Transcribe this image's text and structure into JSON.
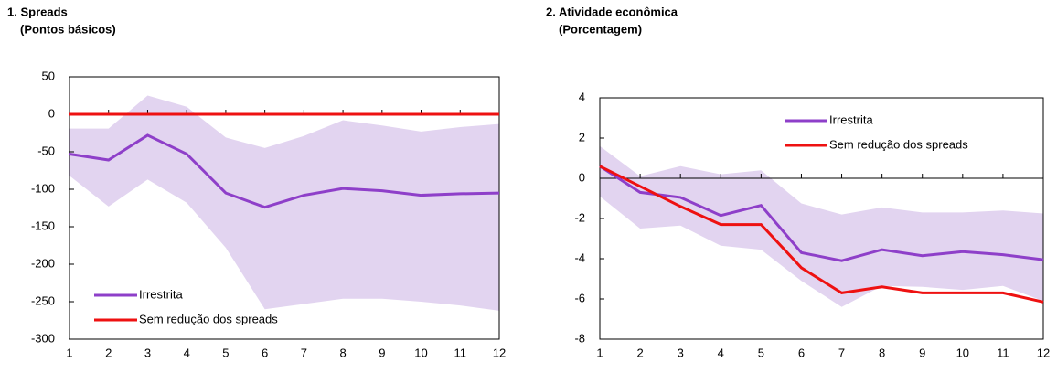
{
  "chart_data": [
    {
      "type": "line",
      "title": "1.  Spreads",
      "subtitle": "(Pontos básicos)",
      "x": [
        1,
        2,
        3,
        4,
        5,
        6,
        7,
        8,
        9,
        10,
        11,
        12
      ],
      "xlim": [
        1,
        12
      ],
      "xticks": [
        1,
        2,
        3,
        4,
        5,
        6,
        7,
        8,
        9,
        10,
        11,
        12
      ],
      "ylim": [
        -300,
        50
      ],
      "yticks": [
        -300,
        -250,
        -200,
        -150,
        -100,
        -50,
        0,
        50
      ],
      "legend": "lower left",
      "band": {
        "color": "#e2d4f0",
        "upper": [
          -19,
          -19,
          25,
          10,
          -31,
          -45,
          -29,
          -8,
          -15,
          -23,
          -17,
          -13
        ],
        "lower": [
          -82,
          -123,
          -87,
          -118,
          -178,
          -260,
          -253,
          -246,
          -246,
          -250,
          -255,
          -262
        ]
      },
      "series": [
        {
          "name": "Irrestrita",
          "color": "#8e3fc9",
          "values": [
            -53,
            -61,
            -28,
            -53,
            -105,
            -124,
            -108,
            -99,
            -102,
            -108,
            -106,
            -105
          ]
        },
        {
          "name": "Sem redução dos spreads",
          "color": "#ee1111",
          "values": [
            0,
            0,
            0,
            0,
            0,
            0,
            0,
            0,
            0,
            0,
            0,
            0
          ]
        }
      ]
    },
    {
      "type": "line",
      "title": "2.  Atividade econômica",
      "subtitle": "(Porcentagem)",
      "x": [
        1,
        2,
        3,
        4,
        5,
        6,
        7,
        8,
        9,
        10,
        11,
        12
      ],
      "xlim": [
        1,
        12
      ],
      "xticks": [
        1,
        2,
        3,
        4,
        5,
        6,
        7,
        8,
        9,
        10,
        11,
        12
      ],
      "ylim": [
        -8,
        4
      ],
      "yticks": [
        -8,
        -6,
        -4,
        -2,
        0,
        2,
        4
      ],
      "legend": "upper right",
      "band": {
        "color": "#e2d4f0",
        "upper": [
          1.6,
          0.1,
          0.6,
          0.2,
          0.4,
          -1.25,
          -1.8,
          -1.45,
          -1.7,
          -1.7,
          -1.6,
          -1.75
        ],
        "lower": [
          -0.9,
          -2.5,
          -2.35,
          -3.35,
          -3.55,
          -5.1,
          -6.4,
          -5.35,
          -5.4,
          -5.55,
          -5.35,
          -6.1
        ]
      },
      "series": [
        {
          "name": "Irrestrita",
          "color": "#8e3fc9",
          "values": [
            0.6,
            -0.7,
            -0.95,
            -1.85,
            -1.35,
            -3.7,
            -4.1,
            -3.55,
            -3.85,
            -3.65,
            -3.8,
            -4.05
          ]
        },
        {
          "name": "Sem redução dos spreads",
          "color": "#ee1111",
          "values": [
            0.6,
            -0.4,
            -1.4,
            -2.3,
            -2.3,
            -4.45,
            -5.7,
            -5.4,
            -5.7,
            -5.7,
            -5.7,
            -6.15
          ]
        }
      ]
    }
  ]
}
